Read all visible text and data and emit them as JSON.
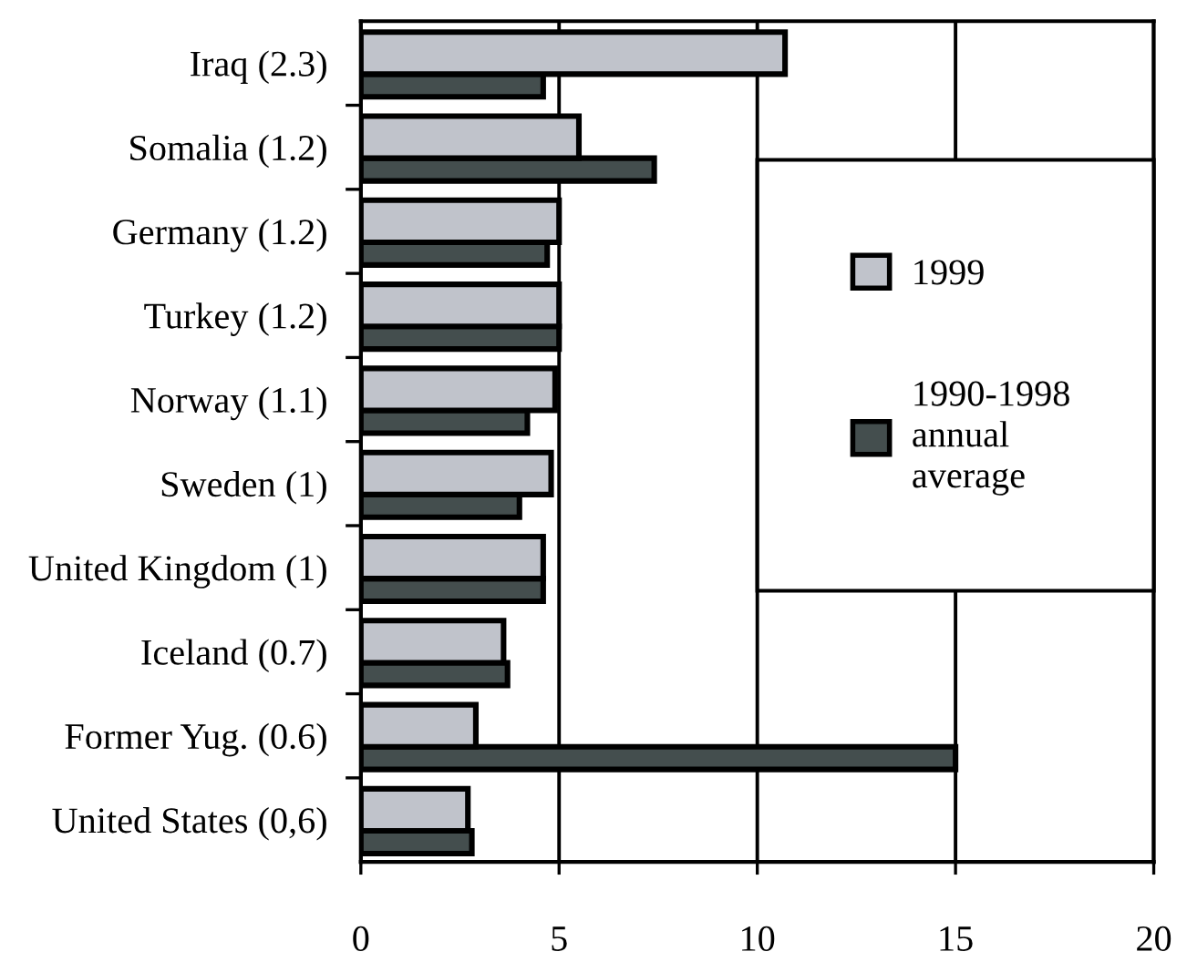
{
  "chart_data": {
    "type": "bar",
    "orientation": "horizontal",
    "categories": [
      "Iraq (2.3)",
      "Somalia (1.2)",
      "Germany (1.2)",
      "Turkey (1.2)",
      "Norway (1.1)",
      "Sweden (1)",
      "United Kingdom (1)",
      "Iceland (0.7)",
      "Former Yug. (0.6)",
      "United States (0,6)"
    ],
    "series": [
      {
        "name": "1999",
        "color": "#c0c3cb",
        "values": [
          10.7,
          5.5,
          5.0,
          5.0,
          4.9,
          4.8,
          4.6,
          3.6,
          2.9,
          2.7
        ]
      },
      {
        "name": "1990-1998\nannual\naverage",
        "color": "#444e4e",
        "values": [
          4.6,
          7.4,
          4.7,
          5.0,
          4.2,
          4.0,
          4.6,
          3.7,
          15.0,
          2.8
        ]
      }
    ],
    "xlim": [
      0,
      20
    ],
    "xticks": [
      0,
      5,
      10,
      15,
      20
    ],
    "grid": "x",
    "legend": "right"
  }
}
